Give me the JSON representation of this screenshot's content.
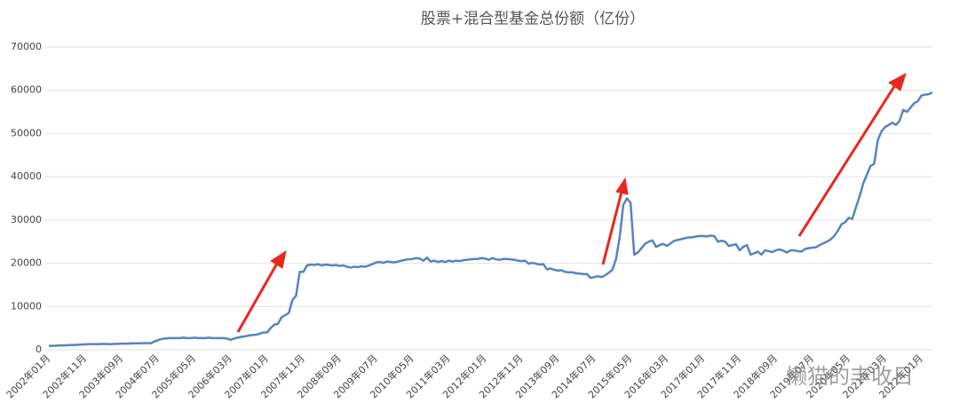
{
  "chart_data": {
    "type": "line",
    "title": "股票+混合型基金总份额（亿份）",
    "watermark": "懒猫的丰收日",
    "color": "#5585bf",
    "grid": true,
    "ylim": [
      0,
      70000
    ],
    "yticks": [
      0,
      10000,
      20000,
      30000,
      40000,
      50000,
      60000,
      70000
    ],
    "categories": [
      "2002年01月",
      null,
      null,
      null,
      null,
      null,
      null,
      null,
      null,
      null,
      "2002年11月",
      null,
      null,
      null,
      null,
      null,
      null,
      null,
      null,
      null,
      "2003年09月",
      null,
      null,
      null,
      null,
      null,
      null,
      null,
      null,
      null,
      "2004年07月",
      null,
      null,
      null,
      null,
      null,
      null,
      null,
      null,
      null,
      "2005年05月",
      null,
      null,
      null,
      null,
      null,
      null,
      null,
      null,
      null,
      "2006年03月",
      null,
      null,
      null,
      null,
      null,
      null,
      null,
      null,
      null,
      "2007年01月",
      null,
      null,
      null,
      null,
      null,
      null,
      null,
      null,
      null,
      "2007年11月",
      null,
      null,
      null,
      null,
      null,
      null,
      null,
      null,
      null,
      "2008年09月",
      null,
      null,
      null,
      null,
      null,
      null,
      null,
      null,
      null,
      "2009年07月",
      null,
      null,
      null,
      null,
      null,
      null,
      null,
      null,
      null,
      "2010年05月",
      null,
      null,
      null,
      null,
      null,
      null,
      null,
      null,
      null,
      "2011年03月",
      null,
      null,
      null,
      null,
      null,
      null,
      null,
      null,
      null,
      "2012年01月",
      null,
      null,
      null,
      null,
      null,
      null,
      null,
      null,
      null,
      "2012年11月",
      null,
      null,
      null,
      null,
      null,
      null,
      null,
      null,
      null,
      "2013年09月",
      null,
      null,
      null,
      null,
      null,
      null,
      null,
      null,
      null,
      "2014年07月",
      null,
      null,
      null,
      null,
      null,
      null,
      null,
      null,
      null,
      "2015年05月",
      null,
      null,
      null,
      null,
      null,
      null,
      null,
      null,
      null,
      "2016年03月",
      null,
      null,
      null,
      null,
      null,
      null,
      null,
      null,
      null,
      "2017年01月",
      null,
      null,
      null,
      null,
      null,
      null,
      null,
      null,
      null,
      "2017年11月",
      null,
      null,
      null,
      null,
      null,
      null,
      null,
      null,
      null,
      "2018年09月",
      null,
      null,
      null,
      null,
      null,
      null,
      null,
      null,
      null,
      "2019年07月",
      null,
      null,
      null,
      null,
      null,
      null,
      null,
      null,
      null,
      "2020年05月",
      null,
      null,
      null,
      null,
      null,
      null,
      null,
      null,
      null,
      "2021年03月",
      null,
      null,
      null,
      null,
      null,
      null,
      null,
      null,
      null,
      "2022年01月",
      null,
      null,
      null
    ],
    "values": [
      900,
      900,
      950,
      1000,
      1000,
      1050,
      1100,
      1100,
      1150,
      1200,
      1250,
      1300,
      1300,
      1300,
      1300,
      1350,
      1300,
      1300,
      1350,
      1350,
      1400,
      1400,
      1450,
      1500,
      1500,
      1500,
      1550,
      1550,
      1500,
      1900,
      2200,
      2500,
      2600,
      2700,
      2700,
      2700,
      2700,
      2800,
      2700,
      2700,
      2800,
      2700,
      2700,
      2700,
      2800,
      2700,
      2700,
      2700,
      2700,
      2600,
      2300,
      2600,
      2800,
      3000,
      3100,
      3300,
      3400,
      3500,
      3700,
      4000,
      4000,
      5000,
      5800,
      6000,
      7500,
      8000,
      8500,
      11500,
      12500,
      18000,
      18000,
      19500,
      19700,
      19600,
      19800,
      19500,
      19700,
      19600,
      19500,
      19600,
      19400,
      19500,
      19200,
      19000,
      19200,
      19100,
      19300,
      19200,
      19500,
      19800,
      20200,
      20300,
      20100,
      20400,
      20300,
      20200,
      20400,
      20600,
      20800,
      20900,
      21000,
      21200,
      21100,
      20600,
      21300,
      20400,
      20600,
      20300,
      20500,
      20300,
      20600,
      20400,
      20600,
      20500,
      20700,
      20800,
      20900,
      21000,
      21000,
      21200,
      21100,
      20800,
      21200,
      20900,
      20800,
      21000,
      21000,
      20900,
      20800,
      20600,
      20500,
      20600,
      19900,
      20100,
      19900,
      19700,
      19800,
      18600,
      18800,
      18500,
      18300,
      18400,
      18000,
      17900,
      17900,
      17700,
      17600,
      17500,
      17500,
      16600,
      16800,
      17000,
      16800,
      17200,
      17800,
      18500,
      21000,
      26000,
      33500,
      35000,
      34000,
      22000,
      22500,
      23500,
      24500,
      25000,
      25300,
      23800,
      24200,
      24500,
      24000,
      24600,
      25200,
      25400,
      25600,
      25800,
      26000,
      26000,
      26200,
      26300,
      26300,
      26200,
      26400,
      26300,
      25000,
      25200,
      25000,
      24000,
      24200,
      24400,
      23000,
      23800,
      24200,
      22000,
      22300,
      22700,
      22000,
      23000,
      22800,
      22600,
      23000,
      23200,
      22900,
      22500,
      23000,
      23000,
      22800,
      22700,
      23300,
      23500,
      23600,
      23700,
      24200,
      24600,
      25000,
      25500,
      26300,
      27500,
      29000,
      29500,
      30500,
      30300,
      33000,
      35500,
      38500,
      40500,
      42500,
      43000,
      48500,
      50500,
      51500,
      52000,
      52500,
      52000,
      53000,
      55500,
      55000,
      56000,
      57000,
      57500,
      58800,
      59000,
      59100,
      59500
    ]
  }
}
